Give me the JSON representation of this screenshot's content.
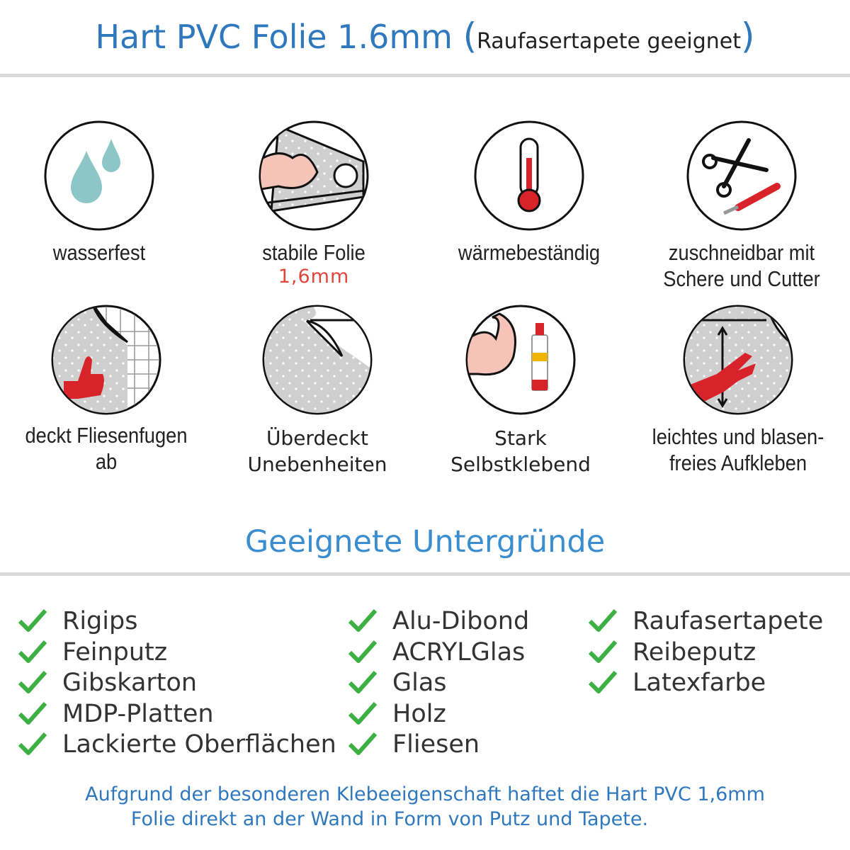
{
  "header": {
    "title_main": "Hart PVC Folie 1.6mm",
    "open_paren": "(",
    "title_sub": "Raufasertapete geeignet",
    "close_paren": ")"
  },
  "features": [
    {
      "icon": "water-drops-icon",
      "label": "wasserfest"
    },
    {
      "icon": "strong-arm-roll-icon",
      "label": "stabile Folie",
      "note": "1,6mm"
    },
    {
      "icon": "thermometer-icon",
      "label": "wärmebeständig"
    },
    {
      "icon": "scissors-cutter-icon",
      "label_line1": "zuschneidbar mit",
      "label_line2": "Schere und Cutter"
    },
    {
      "icon": "thumbs-up-tiles-icon",
      "label": "deckt Fliesenfugen ab"
    },
    {
      "icon": "foil-corner-icon",
      "label_line1": "Überdeckt",
      "label_line2": "Unebenheiten"
    },
    {
      "icon": "strong-arm-glue-icon",
      "label_line1": "Stark",
      "label_line2": "Selbstklebend"
    },
    {
      "icon": "hand-smoothing-icon",
      "label_line1": "leichtes und blasen-",
      "label_line2": "freies Aufkleben"
    }
  ],
  "surfaces": {
    "heading": "Geeignete Untergründe",
    "columns": [
      [
        "Rigips",
        "Feinputz",
        "Gibskarton",
        "MDP-Platten",
        "Lackierte Oberflächen"
      ],
      [
        "Alu-Dibond",
        "ACRYLGlas",
        "Glas",
        "Holz",
        "Fliesen"
      ],
      [
        "Raufasertapete",
        "Reibeputz",
        "Latexfarbe"
      ]
    ]
  },
  "footer": {
    "line1": "Aufgrund der besonderen Klebeeigenschaft haftet die Hart PVC 1,6mm",
    "line2": "Folie direkt an der Wand in Form von Putz und Tapete."
  },
  "colors": {
    "blue": "#2f78bd",
    "check_green": "#3cb043",
    "accent_red": "#e2453c"
  }
}
